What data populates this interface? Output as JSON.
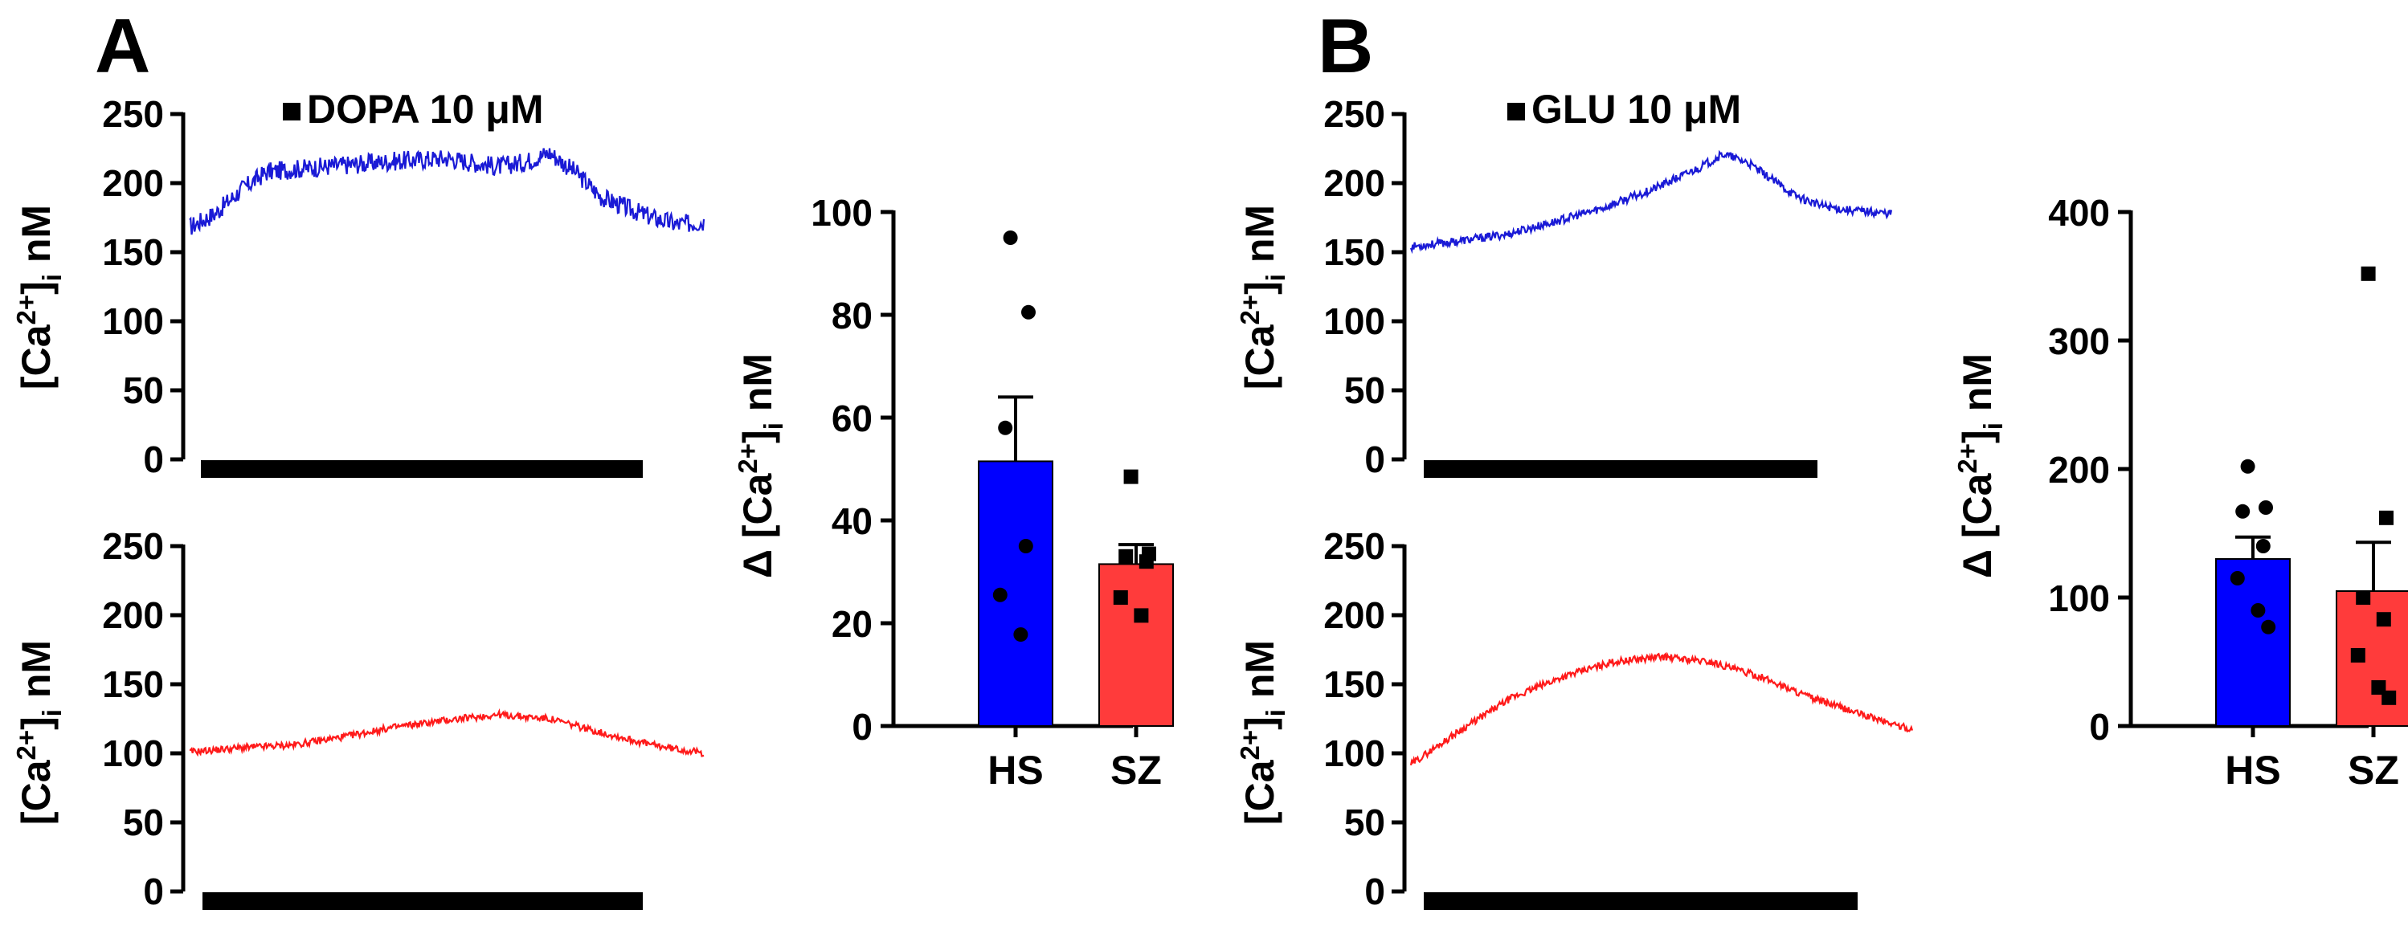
{
  "panels": [
    {
      "letter": "A",
      "stimulus_label": "DOPA 10 μM"
    },
    {
      "letter": "B",
      "stimulus_label": "GLU 10 μM"
    }
  ],
  "trace_ylabel": {
    "main": "[Ca",
    "sup": "2+",
    "close": "]",
    "sub": "i",
    "unit": " nM"
  },
  "bar_ylabel": {
    "prefix": "Δ ",
    "main": "[Ca",
    "sup": "2+",
    "close": "]",
    "sub": "i",
    "unit": " nM"
  },
  "colors": {
    "HS": "#0000ff",
    "SZ": "#ff3b3b",
    "trace_HS": "#1a1ad6",
    "trace_SZ": "#ff1a1a"
  },
  "chart_data": [
    {
      "id": "A-trace-HS",
      "type": "line",
      "panel": "A",
      "group": "HS",
      "color": "#1a1ad6",
      "yticks": [
        0,
        50,
        100,
        150,
        200,
        250
      ],
      "ylim": [
        0,
        250
      ],
      "stimulus": "DOPA 10 μM",
      "x": [
        0,
        0.05,
        0.1,
        0.15,
        0.2,
        0.3,
        0.4,
        0.5,
        0.6,
        0.65,
        0.7,
        0.75,
        0.8,
        0.85,
        0.9,
        0.95,
        1.0
      ],
      "y": [
        168,
        178,
        195,
        208,
        210,
        213,
        216,
        218,
        212,
        215,
        222,
        208,
        190,
        182,
        175,
        170,
        172
      ],
      "noise": 7
    },
    {
      "id": "A-trace-SZ",
      "type": "line",
      "panel": "A",
      "group": "SZ",
      "color": "#ff1a1a",
      "yticks": [
        0,
        50,
        100,
        150,
        200,
        250
      ],
      "ylim": [
        0,
        250
      ],
      "x": [
        0,
        0.1,
        0.2,
        0.3,
        0.4,
        0.5,
        0.6,
        0.7,
        0.8,
        0.9,
        1.0
      ],
      "y": [
        101,
        104,
        106,
        112,
        119,
        124,
        128,
        125,
        115,
        106,
        100
      ],
      "noise": 2.5
    },
    {
      "id": "A-bars",
      "type": "bar",
      "panel": "A",
      "categories": [
        "HS",
        "SZ"
      ],
      "values": [
        51.5,
        31.5
      ],
      "sem": [
        12.5,
        3.8
      ],
      "points": [
        [
          95,
          80.5,
          58,
          35,
          25.5,
          17.8
        ],
        [
          48.5,
          33.5,
          33,
          32,
          25,
          21.5
        ]
      ],
      "markers": [
        "circle",
        "square"
      ],
      "yticks": [
        0,
        20,
        40,
        60,
        80,
        100
      ],
      "ylim": [
        0,
        100
      ]
    },
    {
      "id": "B-trace-HS",
      "type": "line",
      "panel": "B",
      "group": "HS",
      "color": "#1a1ad6",
      "yticks": [
        0,
        50,
        100,
        150,
        200,
        250
      ],
      "ylim": [
        0,
        250
      ],
      "stimulus": "GLU 10 μM",
      "x": [
        0,
        0.1,
        0.2,
        0.3,
        0.4,
        0.5,
        0.55,
        0.6,
        0.65,
        0.7,
        0.75,
        0.8,
        0.85,
        0.9,
        1.0
      ],
      "y": [
        154,
        158,
        163,
        172,
        182,
        195,
        203,
        211,
        221,
        215,
        203,
        191,
        184,
        181,
        178
      ],
      "noise": 3
    },
    {
      "id": "B-trace-SZ",
      "type": "line",
      "panel": "B",
      "group": "SZ",
      "color": "#ff1a1a",
      "yticks": [
        0,
        50,
        100,
        150,
        200,
        250
      ],
      "ylim": [
        0,
        250
      ],
      "x": [
        0,
        0.1,
        0.2,
        0.3,
        0.4,
        0.5,
        0.6,
        0.7,
        0.8,
        0.9,
        1.0
      ],
      "y": [
        92,
        117,
        140,
        155,
        166,
        170,
        166,
        155,
        140,
        128,
        117
      ],
      "noise": 2.5
    },
    {
      "id": "B-bars",
      "type": "bar",
      "panel": "B",
      "categories": [
        "HS",
        "SZ"
      ],
      "values": [
        130,
        105
      ],
      "sem": [
        17,
        38
      ],
      "points": [
        [
          202,
          170,
          167,
          140,
          115,
          90,
          77
        ],
        [
          352,
          162,
          100,
          83,
          55,
          30,
          22
        ]
      ],
      "markers": [
        "circle",
        "square"
      ],
      "yticks": [
        0,
        100,
        200,
        300,
        400
      ],
      "ylim": [
        0,
        400
      ]
    }
  ]
}
